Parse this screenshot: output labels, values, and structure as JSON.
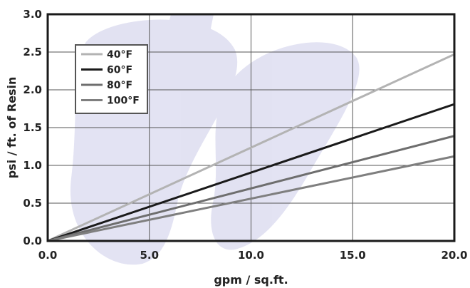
{
  "chart_data": {
    "type": "line",
    "title": "",
    "xlabel": "gpm / sq.ft.",
    "ylabel": "psi / ft. of Resin",
    "xlim": [
      0,
      20
    ],
    "ylim": [
      0,
      3
    ],
    "x_ticks": [
      "0.0",
      "5.0",
      "10.0",
      "15.0",
      "20.0"
    ],
    "y_ticks": [
      "0.0",
      "0.5",
      "1.0",
      "1.5",
      "2.0",
      "2.5",
      "3.0"
    ],
    "grid": true,
    "legend_position": "top-left",
    "series": [
      {
        "name": "40°F",
        "color": "#b3b3b3",
        "x": [
          0,
          20
        ],
        "y": [
          0,
          2.47
        ]
      },
      {
        "name": "60°F",
        "color": "#1a1a1a",
        "x": [
          0,
          20
        ],
        "y": [
          0,
          1.81
        ]
      },
      {
        "name": "80°F",
        "color": "#6e6e6e",
        "x": [
          0,
          20
        ],
        "y": [
          0,
          1.39
        ]
      },
      {
        "name": "100°F",
        "color": "#7f7f7f",
        "x": [
          0,
          20
        ],
        "y": [
          0,
          1.12
        ]
      }
    ]
  }
}
